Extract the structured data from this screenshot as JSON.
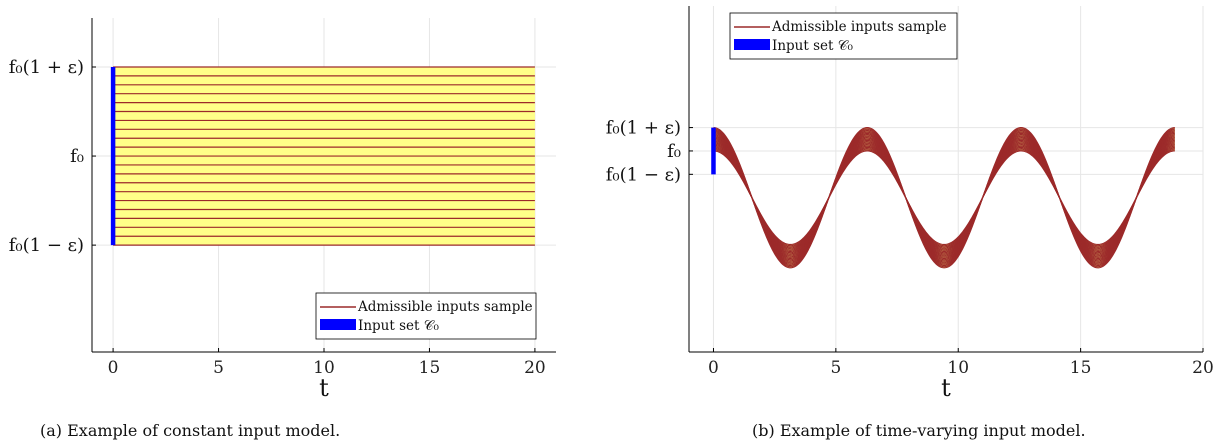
{
  "chart_data": [
    {
      "type": "line",
      "subtitle": "(a) Example of constant input model.",
      "xlabel": "t",
      "ylabel": "",
      "xlim": [
        -1,
        21
      ],
      "ylim": [
        -2.2,
        1.55
      ],
      "x_ticks": [
        0,
        5,
        10,
        15,
        20
      ],
      "y_ticks": [
        {
          "value": 1,
          "label": "f₀(1 + ε)"
        },
        {
          "value": 0,
          "label": "f₀"
        },
        {
          "value": -1,
          "label": "f₀(1 − ε)"
        }
      ],
      "grid": true,
      "legend_position": "bottom-right",
      "model": "constant",
      "t_range": [
        0,
        20
      ],
      "n_samples": 21,
      "fill_color": "#ffff88",
      "series": [
        {
          "name": "Admissible inputs sample",
          "color": "#9c2a2a",
          "kind": "line"
        },
        {
          "name": "Input set 𝒞₀",
          "color": "#0000ff",
          "kind": "band",
          "x": [
            0,
            0
          ],
          "y": [
            -1,
            1
          ]
        }
      ]
    },
    {
      "type": "line",
      "subtitle": "(b) Example of time-varying input model.",
      "xlabel": "t",
      "ylabel": "",
      "xlim": [
        -1,
        20
      ],
      "ylim": [
        -3.3,
        4.1
      ],
      "x_ticks": [
        0,
        5,
        10,
        15,
        20
      ],
      "y_ticks": [
        {
          "value": 1.5,
          "label": "f₀(1 + ε)"
        },
        {
          "value": 1,
          "label": "f₀"
        },
        {
          "value": 0.5,
          "label": "f₀(1 − ε)"
        }
      ],
      "grid": true,
      "legend_position": "top-left",
      "model": "cosine",
      "t_range": [
        0,
        18.85
      ],
      "amplitude_range": [
        1,
        1.5
      ],
      "n_samples": 21,
      "fill_color": "#ffff88",
      "series": [
        {
          "name": "Admissible inputs sample",
          "color": "#9c2a2a",
          "kind": "line"
        },
        {
          "name": "Input set 𝒞₀",
          "color": "#0000ff",
          "kind": "band",
          "x": [
            0,
            0
          ],
          "y": [
            0.5,
            1.5
          ]
        }
      ]
    }
  ]
}
